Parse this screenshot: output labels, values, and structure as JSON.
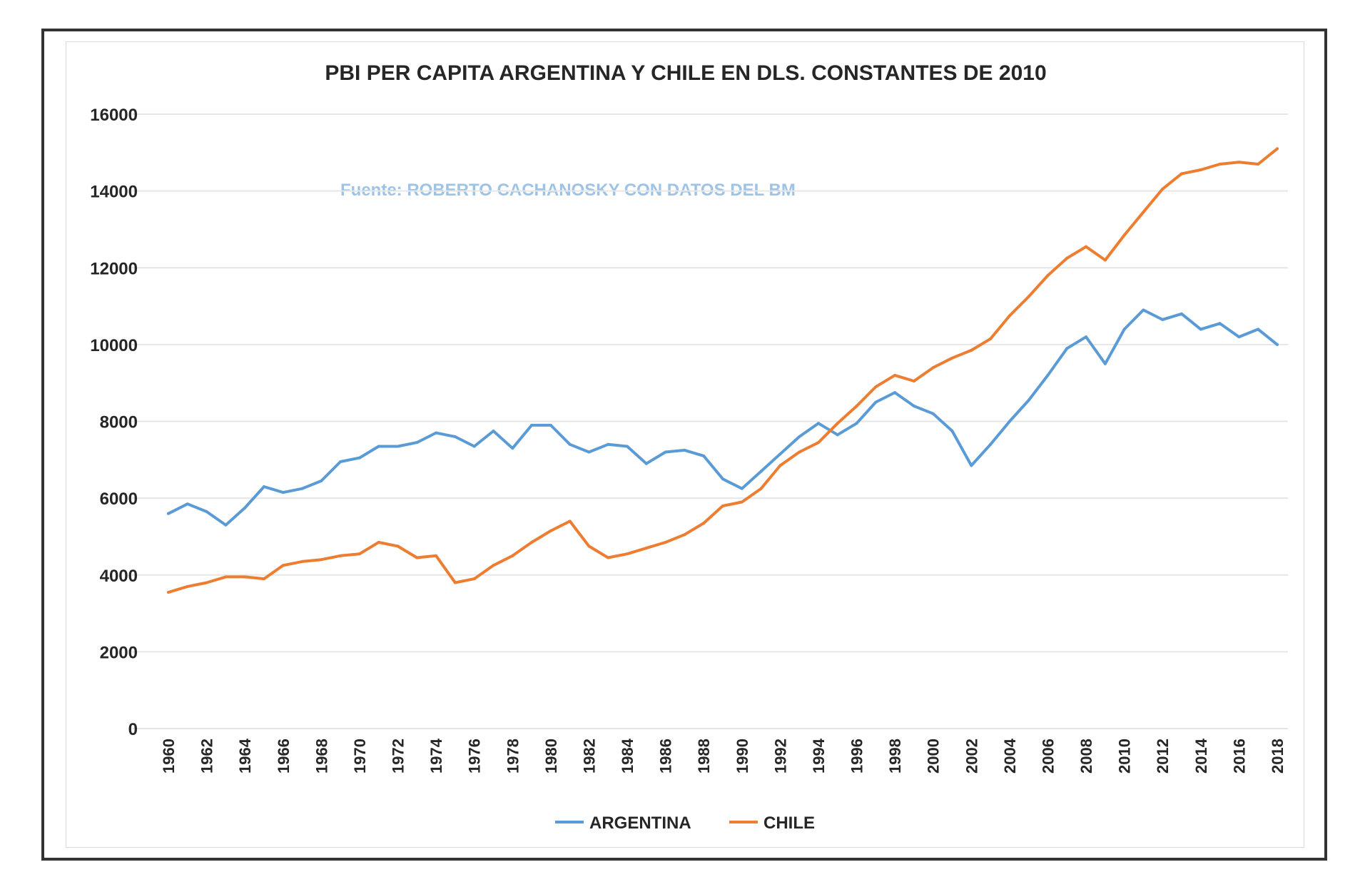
{
  "chart_data": {
    "type": "line",
    "title": "PBI PER CAPITA ARGENTINA  Y CHILE EN DLS. CONSTANTES  DE 2010",
    "annotation": "Fuente: ROBERTO CACHANOSKY CON DATOS DEL BM",
    "xlabel": "",
    "ylabel": "",
    "ylim": [
      0,
      16000
    ],
    "yticks": [
      "0",
      "2000",
      "4000",
      "6000",
      "8000",
      "10000",
      "12000",
      "14000",
      "16000"
    ],
    "ytick_values": [
      0,
      2000,
      4000,
      6000,
      8000,
      10000,
      12000,
      14000,
      16000
    ],
    "grid": true,
    "legend_position": "bottom",
    "x": [
      1960,
      1961,
      1962,
      1963,
      1964,
      1965,
      1966,
      1967,
      1968,
      1969,
      1970,
      1971,
      1972,
      1973,
      1974,
      1975,
      1976,
      1977,
      1978,
      1979,
      1980,
      1981,
      1982,
      1983,
      1984,
      1985,
      1986,
      1987,
      1988,
      1989,
      1990,
      1991,
      1992,
      1993,
      1994,
      1995,
      1996,
      1997,
      1998,
      1999,
      2000,
      2001,
      2002,
      2003,
      2004,
      2005,
      2006,
      2007,
      2008,
      2009,
      2010,
      2011,
      2012,
      2013,
      2014,
      2015,
      2016,
      2017,
      2018
    ],
    "xtick_labels": [
      "1960",
      "1962",
      "1964",
      "1966",
      "1968",
      "1970",
      "1972",
      "1974",
      "1976",
      "1978",
      "1980",
      "1982",
      "1984",
      "1986",
      "1988",
      "1990",
      "1992",
      "1994",
      "1996",
      "1998",
      "2000",
      "2002",
      "2004",
      "2006",
      "2008",
      "2010",
      "2012",
      "2014",
      "2016",
      "2018"
    ],
    "series": [
      {
        "name": "ARGENTINA",
        "color": "#5b9bd5",
        "values": [
          5600,
          5850,
          5650,
          5300,
          5750,
          6300,
          6150,
          6250,
          6450,
          6950,
          7050,
          7350,
          7350,
          7450,
          7700,
          7600,
          7350,
          7750,
          7300,
          7900,
          7900,
          7400,
          7200,
          7400,
          7350,
          6900,
          7200,
          7250,
          7100,
          6500,
          6250,
          6700,
          7150,
          7600,
          7950,
          7650,
          7950,
          8500,
          8750,
          8400,
          8200,
          7750,
          6850,
          7400,
          8000,
          8550,
          9200,
          9900,
          10200,
          9500,
          10400,
          10900,
          10650,
          10800,
          10400,
          10550,
          10200,
          10400,
          10000
        ]
      },
      {
        "name": "CHILE",
        "color": "#ed7d31",
        "values": [
          3550,
          3700,
          3800,
          3950,
          3950,
          3900,
          4250,
          4350,
          4400,
          4500,
          4550,
          4850,
          4750,
          4450,
          4500,
          3800,
          3900,
          4250,
          4500,
          4850,
          5150,
          5400,
          4750,
          4450,
          4550,
          4700,
          4850,
          5050,
          5350,
          5800,
          5900,
          6250,
          6850,
          7200,
          7450,
          7950,
          8400,
          8900,
          9200,
          9050,
          9400,
          9650,
          9850,
          10150,
          10750,
          11250,
          11800,
          12250,
          12550,
          12200,
          12850,
          13450,
          14050,
          14450,
          14550,
          14700,
          14750,
          14700,
          15100
        ]
      }
    ]
  }
}
